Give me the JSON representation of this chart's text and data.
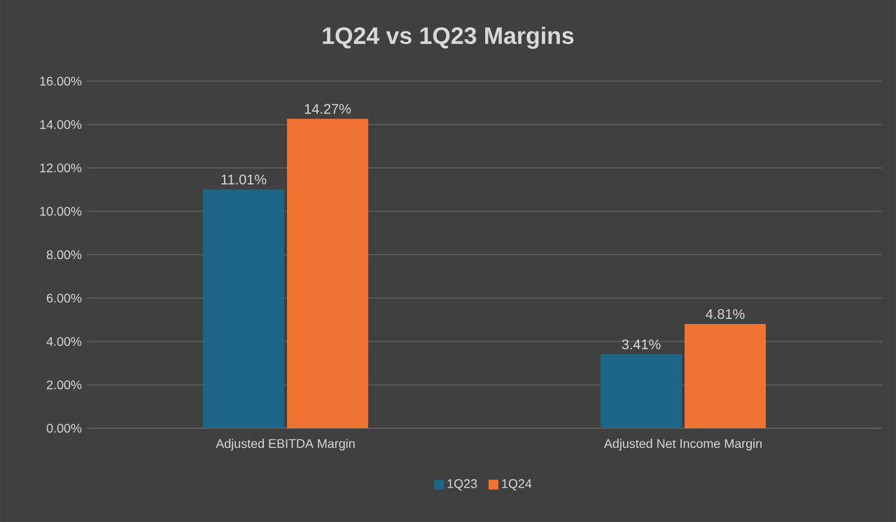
{
  "chart_data": {
    "type": "bar",
    "title": "1Q24 vs 1Q23 Margins",
    "categories": [
      "Adjusted EBITDA Margin",
      "Adjusted Net Income Margin"
    ],
    "series": [
      {
        "name": "1Q23",
        "color": "#1d6687",
        "values": [
          11.01,
          3.41
        ],
        "value_labels": [
          "11.01%",
          "3.41%"
        ]
      },
      {
        "name": "1Q24",
        "color": "#ef7434",
        "values": [
          14.27,
          4.81
        ],
        "value_labels": [
          "14.27%",
          "4.81%"
        ]
      }
    ],
    "ylim": [
      0,
      16
    ],
    "yticks": [
      {
        "value": 0,
        "label": "0.00%"
      },
      {
        "value": 2,
        "label": "2.00%"
      },
      {
        "value": 4,
        "label": "4.00%"
      },
      {
        "value": 6,
        "label": "6.00%"
      },
      {
        "value": 8,
        "label": "8.00%"
      },
      {
        "value": 10,
        "label": "10.00%"
      },
      {
        "value": 12,
        "label": "12.00%"
      },
      {
        "value": 14,
        "label": "14.00%"
      },
      {
        "value": 16,
        "label": "16.00%"
      }
    ],
    "grid": "y",
    "legend": "bottom"
  }
}
